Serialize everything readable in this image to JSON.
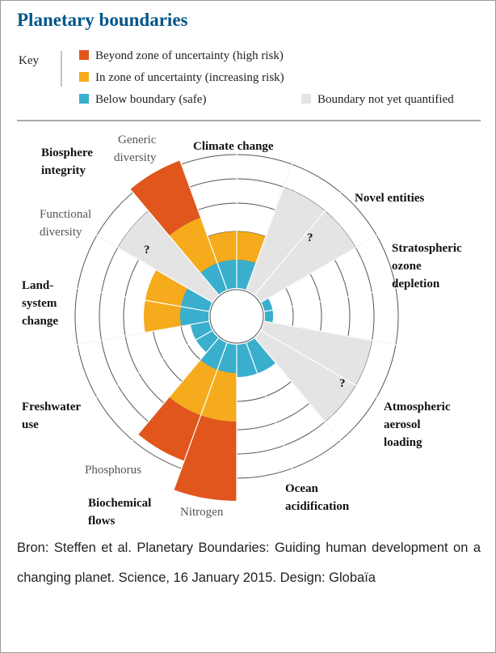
{
  "title": "Planetary boundaries",
  "key": {
    "label": "Key",
    "items": [
      {
        "text": "Beyond zone of uncertainty (high risk)",
        "color": "#e0561c"
      },
      {
        "text": "In zone of uncertainty (increasing risk)",
        "color": "#f5ab1b"
      },
      {
        "text": "Below boundary (safe)",
        "color": "#39afcd"
      },
      {
        "text": "Boundary not yet quantified",
        "color": "#e4e4e4"
      }
    ]
  },
  "labels": [
    {
      "lines": [
        "Biosphere",
        "integrity"
      ],
      "style": "bold"
    },
    {
      "lines": [
        "Generic",
        "diversity"
      ],
      "style": "sub"
    },
    {
      "lines": [
        "Climate change"
      ],
      "style": "bold"
    },
    {
      "lines": [
        "Novel entities"
      ],
      "style": "bold"
    },
    {
      "lines": [
        "Functional",
        "diversity"
      ],
      "style": "sub"
    },
    {
      "lines": [
        "Stratospheric",
        "ozone",
        "depletion"
      ],
      "style": "bold"
    },
    {
      "lines": [
        "Land-",
        "system",
        "change"
      ],
      "style": "bold"
    },
    {
      "lines": [
        "Freshwater",
        "use"
      ],
      "style": "bold"
    },
    {
      "lines": [
        "Atmospheric",
        "aerosol",
        "loading"
      ],
      "style": "bold"
    },
    {
      "lines": [
        "Phosphorus"
      ],
      "style": "sub"
    },
    {
      "lines": [
        "Biochemical",
        "flows"
      ],
      "style": "bold"
    },
    {
      "lines": [
        "Nitrogen"
      ],
      "style": "sub"
    },
    {
      "lines": [
        "Ocean",
        "acidification"
      ],
      "style": "bold"
    }
  ],
  "unknown_marks": [
    "?",
    "?",
    "?"
  ],
  "caption": "Bron: Steffen et al. Planetary Boundaries: Guiding human development on a changing planet. Science, 16 January 2015. Design: Globaïa"
}
